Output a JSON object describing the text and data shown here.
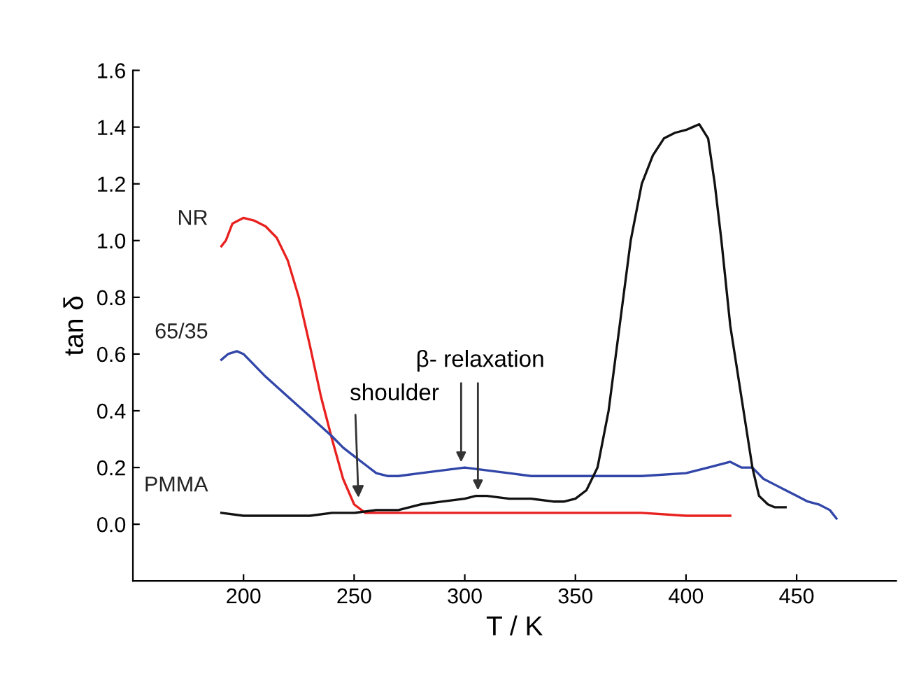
{
  "chart_data": {
    "type": "line",
    "xlabel": "T / K",
    "ylabel": "tan δ",
    "xlim": [
      150,
      495
    ],
    "xticks": [
      200,
      250,
      300,
      350,
      400,
      450
    ],
    "ylim": [
      -0.2,
      1.6
    ],
    "yticks": [
      {
        "value": 0,
        "label": "0.0"
      },
      0.2,
      0.4,
      0.6,
      0.8,
      {
        "value": 1,
        "label": "1.0"
      },
      1.2,
      1.4,
      1.6
    ],
    "grid": false,
    "legend": false,
    "marker": "none",
    "line_style": "solid",
    "series": [
      {
        "name": "NR",
        "color": "#e8211f",
        "x": [
          190,
          192,
          195,
          200,
          205,
          210,
          215,
          220,
          225,
          230,
          235,
          240,
          245,
          250,
          255,
          260,
          280,
          300,
          320,
          340,
          360,
          380,
          400,
          420
        ],
        "values": [
          0.98,
          1.0,
          1.06,
          1.08,
          1.07,
          1.05,
          1.01,
          0.93,
          0.8,
          0.63,
          0.45,
          0.3,
          0.16,
          0.07,
          0.04,
          0.04,
          0.04,
          0.04,
          0.04,
          0.04,
          0.04,
          0.04,
          0.03,
          0.03
        ]
      },
      {
        "name": "65/35",
        "color": "#3146a8",
        "x": [
          190,
          193,
          197,
          200,
          205,
          210,
          220,
          230,
          240,
          245,
          250,
          255,
          260,
          265,
          270,
          280,
          290,
          300,
          310,
          320,
          330,
          340,
          350,
          360,
          380,
          400,
          410,
          420,
          425,
          430,
          435,
          440,
          445,
          450,
          455,
          460,
          465,
          468
        ],
        "values": [
          0.58,
          0.6,
          0.61,
          0.6,
          0.56,
          0.52,
          0.45,
          0.38,
          0.31,
          0.27,
          0.24,
          0.21,
          0.18,
          0.17,
          0.17,
          0.18,
          0.19,
          0.2,
          0.19,
          0.18,
          0.17,
          0.17,
          0.17,
          0.17,
          0.17,
          0.18,
          0.2,
          0.22,
          0.2,
          0.2,
          0.16,
          0.14,
          0.12,
          0.1,
          0.08,
          0.07,
          0.05,
          0.02
        ]
      },
      {
        "name": "PMMA",
        "color": "#111111",
        "x": [
          190,
          200,
          210,
          220,
          230,
          240,
          250,
          260,
          270,
          280,
          290,
          300,
          305,
          310,
          320,
          330,
          340,
          345,
          350,
          355,
          360,
          365,
          370,
          375,
          380,
          385,
          390,
          395,
          400,
          403,
          406,
          410,
          413,
          416,
          420,
          425,
          430,
          433,
          437,
          440,
          445
        ],
        "values": [
          0.04,
          0.03,
          0.03,
          0.03,
          0.03,
          0.04,
          0.04,
          0.05,
          0.05,
          0.07,
          0.08,
          0.09,
          0.1,
          0.1,
          0.09,
          0.09,
          0.08,
          0.08,
          0.09,
          0.12,
          0.2,
          0.4,
          0.7,
          1.0,
          1.2,
          1.3,
          1.36,
          1.38,
          1.39,
          1.4,
          1.41,
          1.36,
          1.2,
          1.0,
          0.7,
          0.45,
          0.2,
          0.1,
          0.07,
          0.06,
          0.06
        ]
      }
    ],
    "annotations": [
      {
        "text": "shoulder",
        "x": 252,
        "y": 0.07
      },
      "β- relaxation"
    ]
  }
}
